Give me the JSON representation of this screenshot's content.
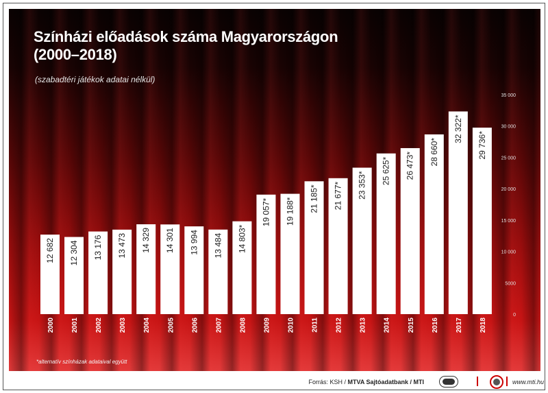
{
  "title_line1": "Színházi előadások száma Magyarországon",
  "title_line2": "(2000–2018)",
  "subtitle": "(szabadtéri játékok adatai nélkül)",
  "footnote": "*alternatív színházak adataival együtt",
  "source_prefix": "Forrás: KSH /",
  "source_bold": "MTVA Sajtóadatbank / MTI",
  "site": "www.mti.hu",
  "chart_data": {
    "type": "bar",
    "categories": [
      "2000",
      "2001",
      "2002",
      "2003",
      "2004",
      "2005",
      "2006",
      "2007",
      "2008",
      "2009",
      "2010",
      "2011",
      "2012",
      "2013",
      "2014",
      "2015",
      "2016",
      "2017",
      "2018"
    ],
    "values": [
      12682,
      12304,
      13176,
      13473,
      14329,
      14301,
      13994,
      13484,
      14803,
      19057,
      19188,
      21185,
      21677,
      23353,
      25625,
      26473,
      28660,
      32322,
      29736
    ],
    "labels": [
      "12 682",
      "12 304",
      "13 176",
      "13 473",
      "14 329",
      "14 301",
      "13 994",
      "13 484",
      "14 803*",
      "19 057*",
      "19 188*",
      "21 185*",
      "21 677*",
      "23 353*",
      "25 625*",
      "26 473*",
      "28 660*",
      "32 322*",
      "29 736*"
    ],
    "ylim": [
      0,
      35000
    ],
    "yticks": [
      0,
      5000,
      10000,
      15000,
      20000,
      25000,
      30000,
      35000
    ],
    "ytick_labels": [
      "0",
      "5000",
      "10 000",
      "15 000",
      "20 000",
      "25 000",
      "30 000",
      "35 000"
    ],
    "axis_side": "right",
    "colors": {
      "bar": "#ffffff",
      "label": "#1a1a1a",
      "tick": "#e0e0e0"
    }
  }
}
